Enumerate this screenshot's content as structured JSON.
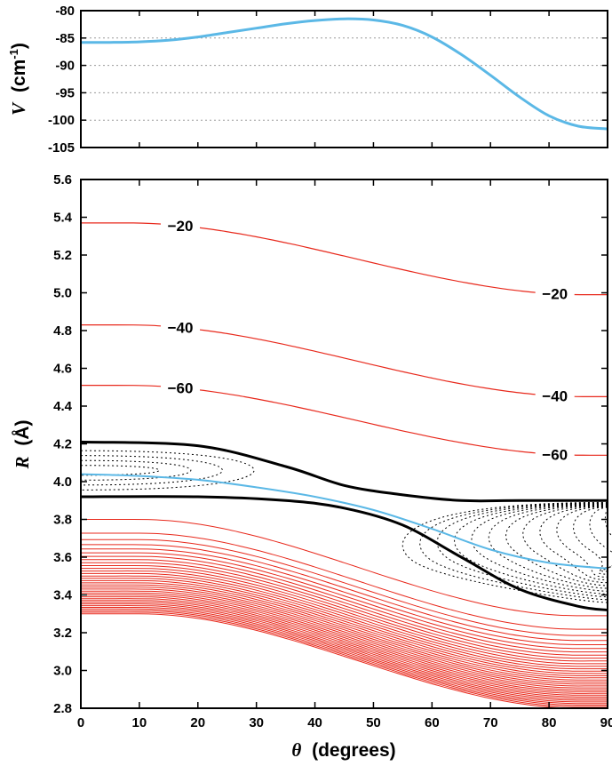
{
  "chart_data": [
    {
      "type": "line",
      "panel": "top",
      "ylabel_var": "V",
      "ylabel_unit": "(cm",
      "ylabel_sup": "-1",
      "ylabel_close": ")",
      "xlim": [
        0,
        90
      ],
      "ylim": [
        -105,
        -80
      ],
      "yticks": [
        -80,
        -85,
        -90,
        -95,
        -100,
        -105
      ],
      "grid": "horizontal dotted",
      "color": "#5bb8e6",
      "series": [
        {
          "x": [
            0,
            5,
            10,
            15,
            20,
            25,
            30,
            35,
            40,
            45,
            50,
            55,
            60,
            65,
            70,
            75,
            80,
            85,
            90
          ],
          "y": [
            -85.8,
            -85.8,
            -85.7,
            -85.4,
            -84.8,
            -84.0,
            -83.2,
            -82.4,
            -81.8,
            -81.5,
            -81.7,
            -82.7,
            -84.8,
            -88.0,
            -91.8,
            -95.8,
            -99.2,
            -101.1,
            -101.6
          ]
        }
      ]
    },
    {
      "type": "contour",
      "panel": "bottom",
      "xlabel_var": "θ",
      "xlabel_unit": "(degrees)",
      "ylabel_var": "R",
      "ylabel_unit": "(Å)",
      "xlim": [
        0,
        90
      ],
      "ylim": [
        2.8,
        5.6
      ],
      "xticks": [
        0,
        10,
        20,
        30,
        40,
        50,
        60,
        70,
        80,
        90
      ],
      "yticks": [
        2.8,
        3.0,
        3.2,
        3.4,
        3.6,
        3.8,
        4.0,
        4.2,
        4.4,
        4.6,
        4.8,
        5.0,
        5.2,
        5.4,
        5.6
      ],
      "colors": {
        "positive_contours": "#e8291c",
        "labeled_contours": "#e8291c",
        "boundary": "#000000",
        "minimum_path": "#5bb8e6"
      },
      "labeled_contours": [
        {
          "level": "−20",
          "y0": 5.37,
          "y1": 4.99,
          "labels_at_x": [
            17,
            81
          ]
        },
        {
          "level": "−40",
          "y0": 4.83,
          "y1": 4.45,
          "labels_at_x": [
            17,
            81
          ]
        },
        {
          "level": "−60",
          "y0": 4.51,
          "y1": 4.14,
          "labels_at_x": [
            17,
            81
          ]
        }
      ],
      "zero_contour_upper": {
        "x": [
          0,
          20,
          35,
          45,
          55,
          65,
          75,
          90
        ],
        "y": [
          4.21,
          4.19,
          4.08,
          3.98,
          3.93,
          3.9,
          3.9,
          3.9
        ]
      },
      "zero_contour_lower": {
        "x": [
          0,
          20,
          35,
          45,
          55,
          65,
          75,
          85,
          90
        ],
        "y": [
          3.92,
          3.92,
          3.9,
          3.86,
          3.77,
          3.6,
          3.43,
          3.34,
          3.32
        ]
      },
      "minimum_energy_path": {
        "x": [
          0,
          10,
          20,
          30,
          40,
          50,
          60,
          70,
          80,
          90
        ],
        "y": [
          4.04,
          4.03,
          4.01,
          3.97,
          3.92,
          3.85,
          3.75,
          3.64,
          3.57,
          3.54
        ]
      },
      "repulsive_contours": {
        "count": 34,
        "y0_top": 3.8,
        "y0_bottom": 3.3,
        "y90_top": 3.29,
        "y90_bottom": 2.8
      }
    }
  ]
}
